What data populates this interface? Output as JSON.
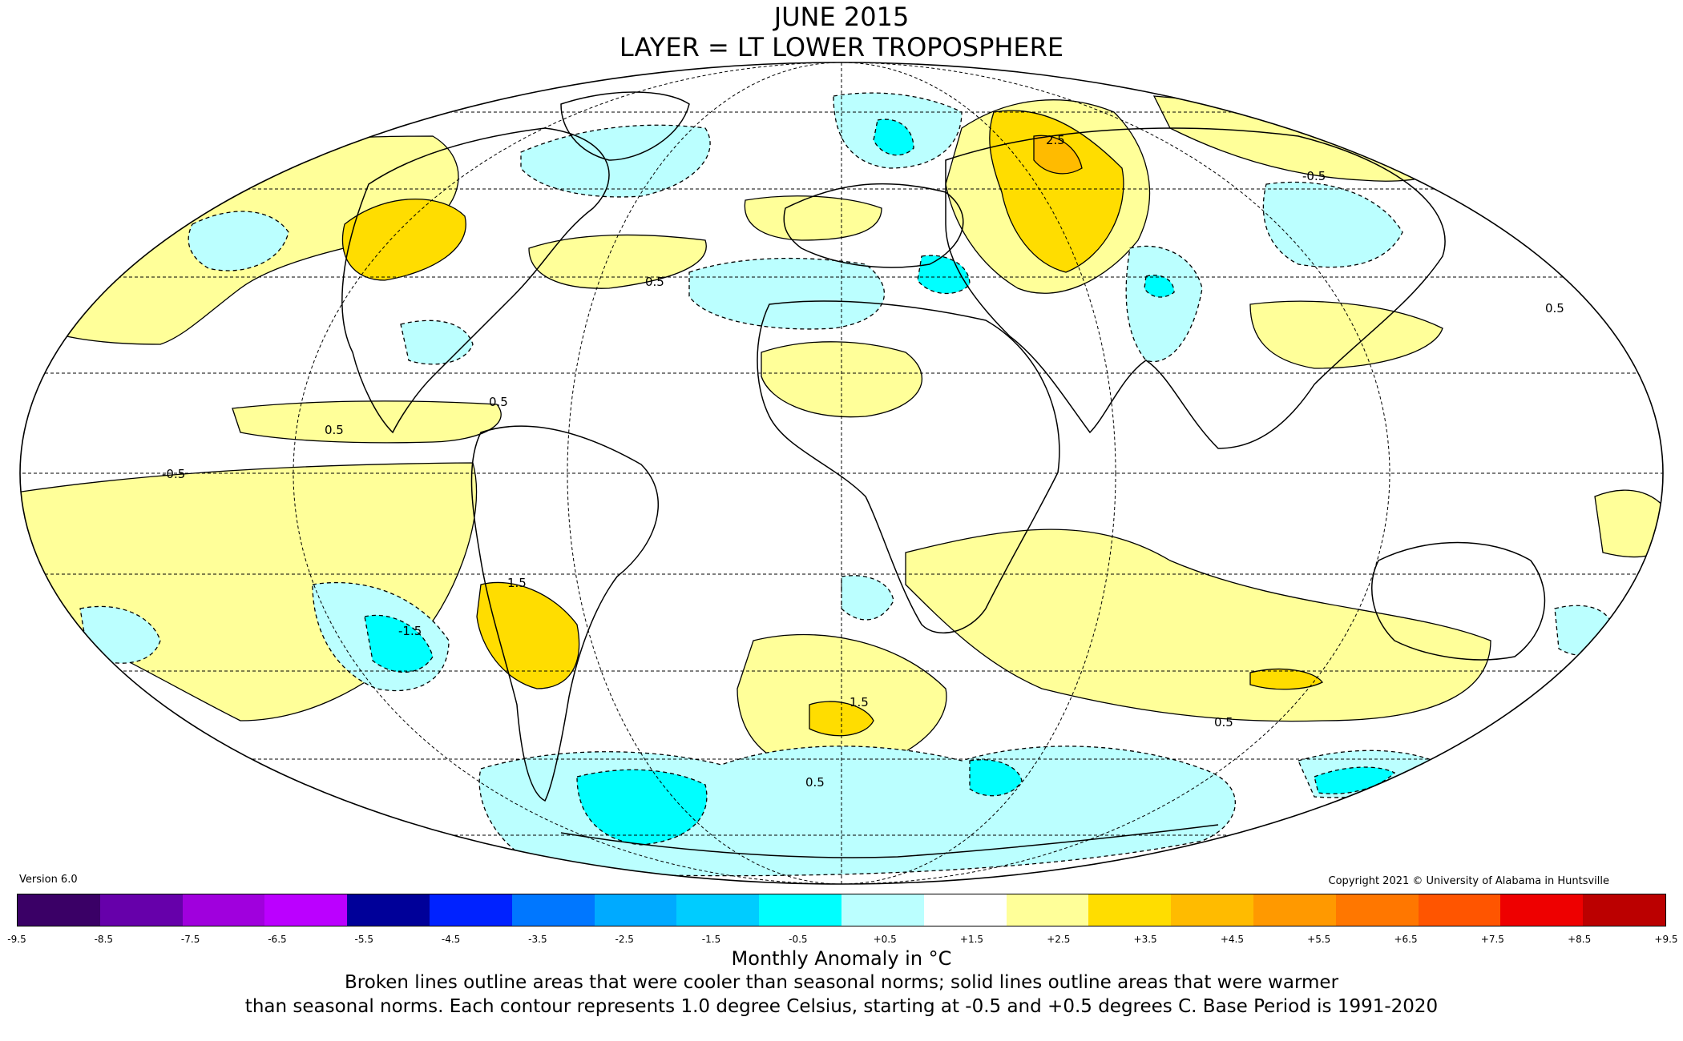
{
  "title": "JUNE 2015",
  "subtitle": "LAYER = LT LOWER TROPOSPHERE",
  "version": "Version 6.0",
  "copyright": "Copyright 2021 © University of Alabama in Huntsville",
  "colorbar": {
    "ticks": [
      "-9.5",
      "-8.5",
      "-7.5",
      "-6.5",
      "-5.5",
      "-4.5",
      "-3.5",
      "-2.5",
      "-1.5",
      "-0.5",
      "+0.5",
      "+1.5",
      "+2.5",
      "+3.5",
      "+4.5",
      "+5.5",
      "+6.5",
      "+7.5",
      "+8.5",
      "+9.5"
    ],
    "colors": [
      "#3a0066",
      "#6600aa",
      "#a000dd",
      "#bb00ff",
      "#000099",
      "#0022ff",
      "#0077ff",
      "#00aaff",
      "#00ccff",
      "#00ffff",
      "#bbffff",
      "#ffffff",
      "#ffff99",
      "#ffdd00",
      "#ffbb00",
      "#ff9900",
      "#ff7700",
      "#ff5500",
      "#ee0000",
      "#bb0000"
    ],
    "units_label": "Monthly Anomaly in °C"
  },
  "note_line1": "Broken lines outline areas that were cooler than seasonal norms; solid lines outline areas that were warmer",
  "note_line2": "than seasonal norms. Each contour represents 1.0 degree Celsius, starting at -0.5 and +0.5 degrees C. Base Period is 1991-2020",
  "contour_labels": [
    "-0.5",
    "-1.5",
    "0.5",
    "1.5",
    "2.5"
  ]
}
